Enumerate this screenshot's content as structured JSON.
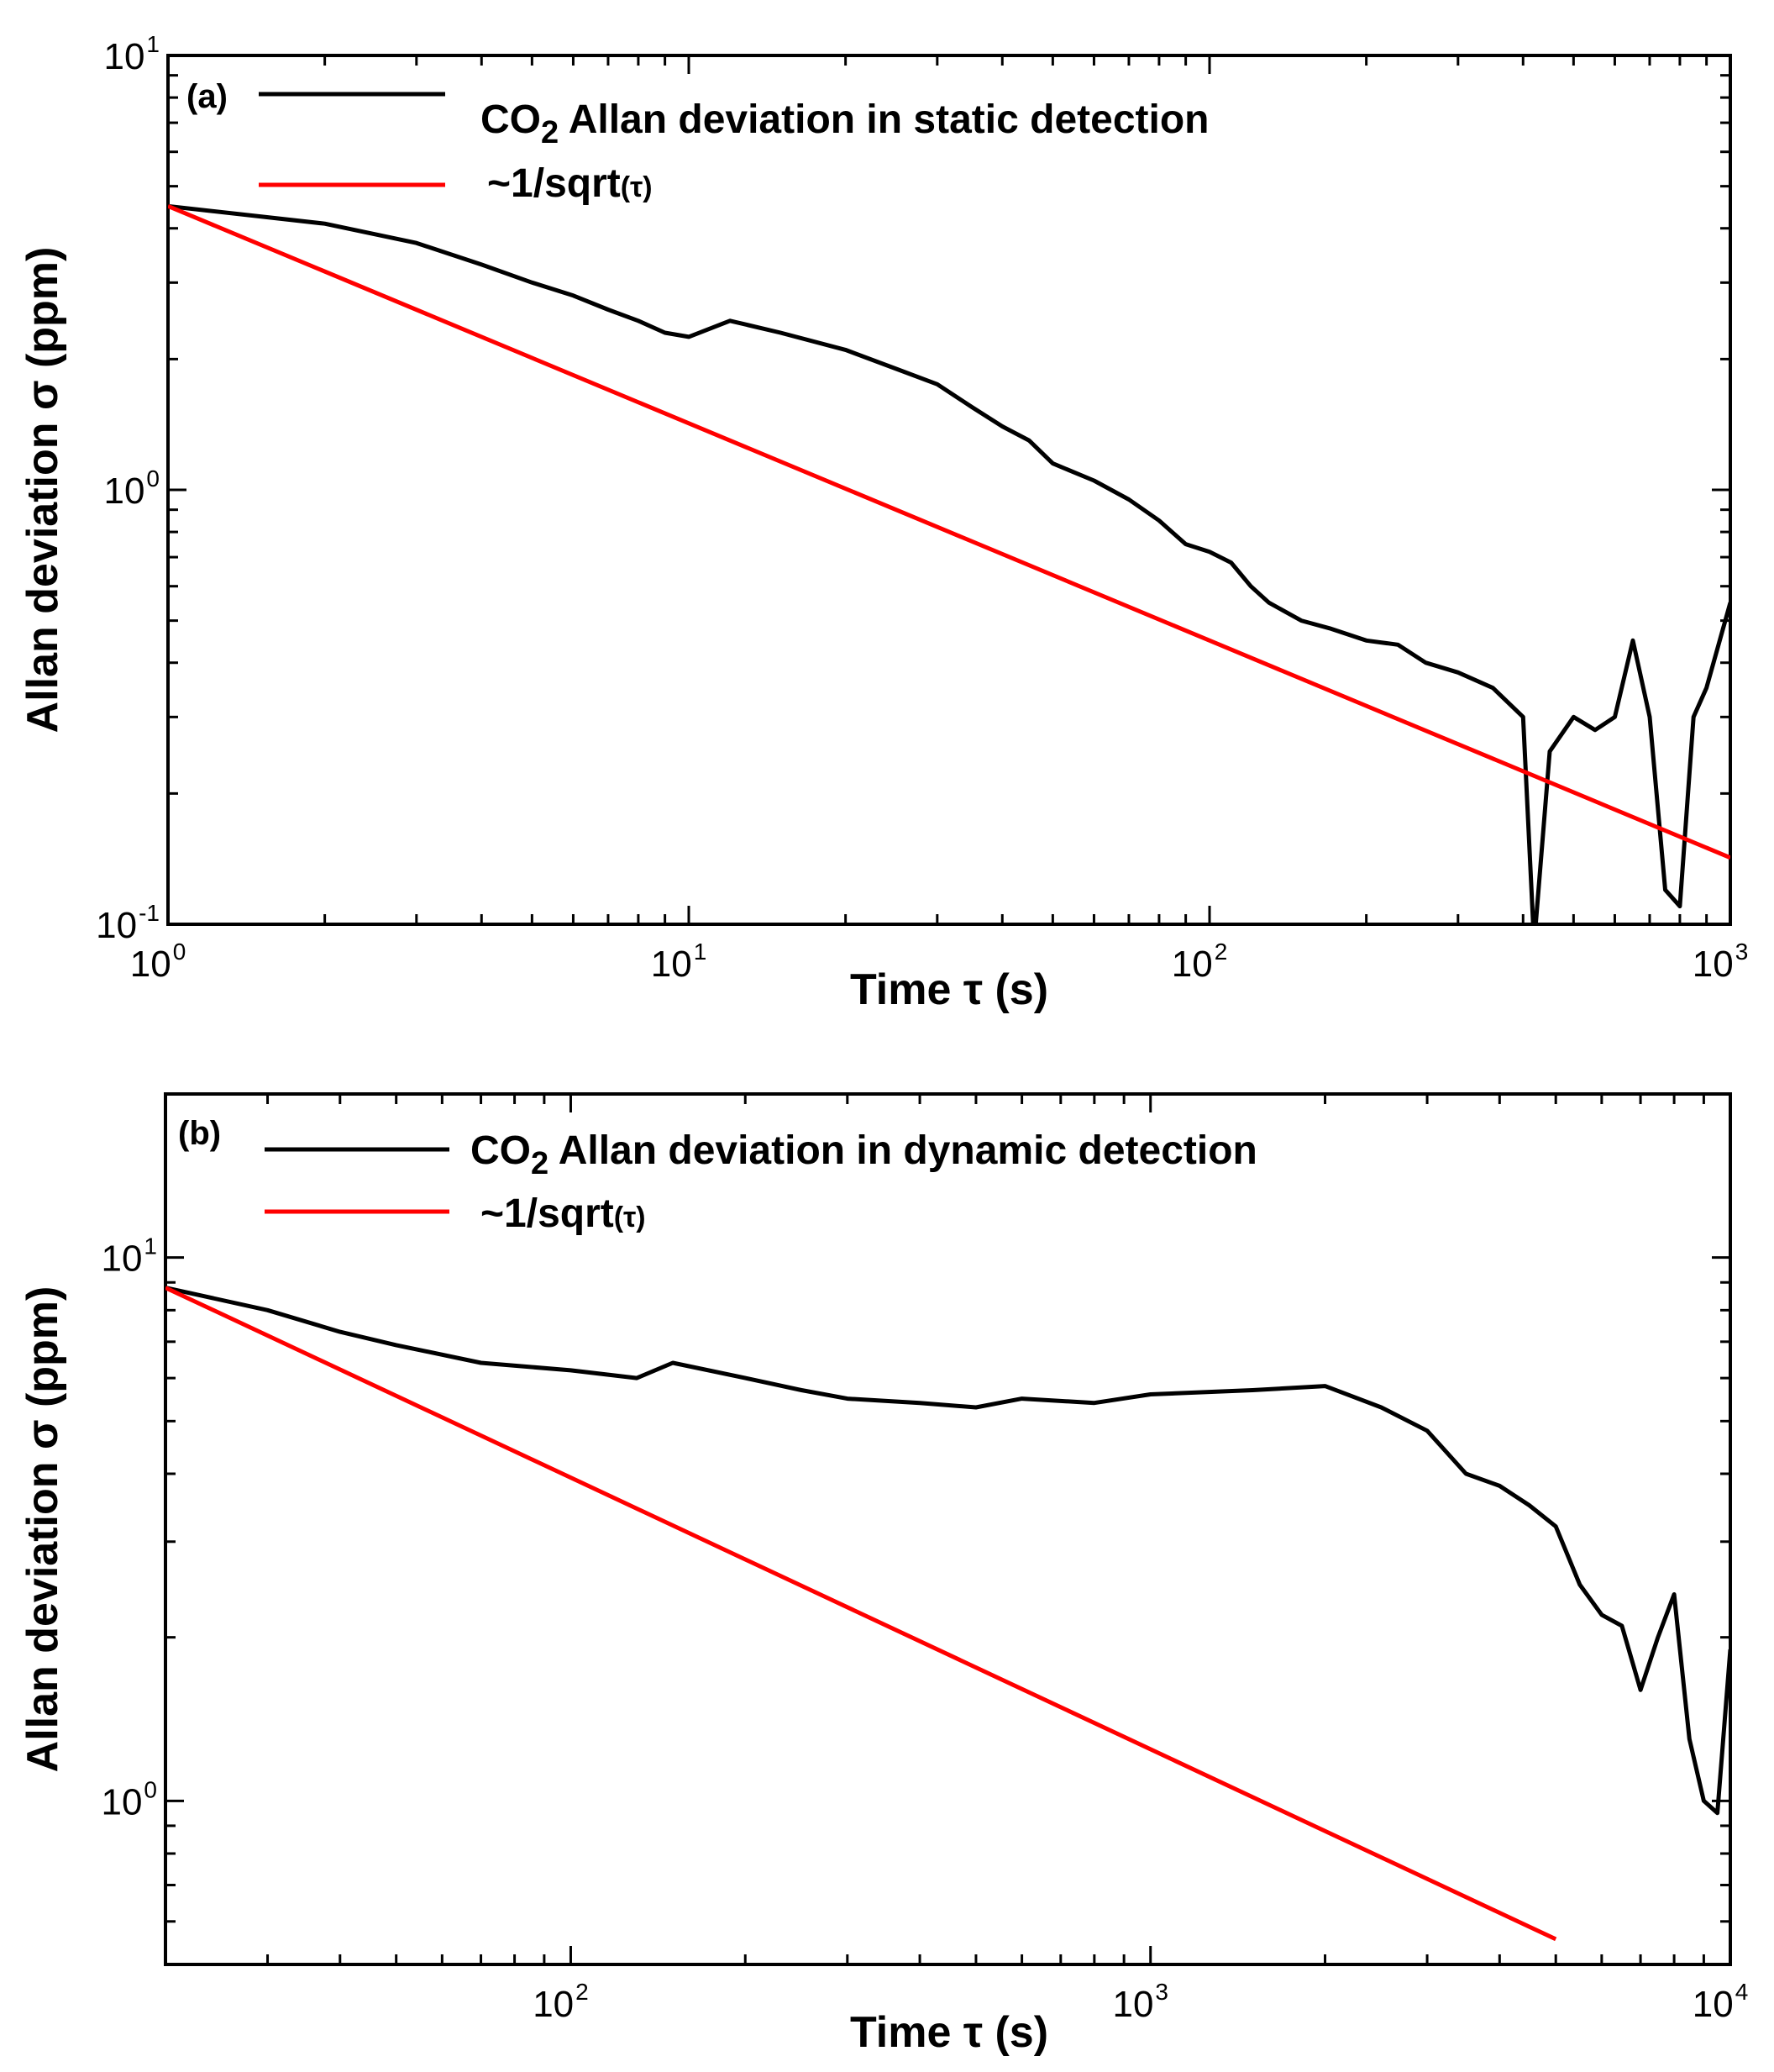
{
  "chart_data": [
    {
      "type": "line",
      "panel_label": "(a)",
      "xlabel": "Time τ (s)",
      "ylabel": "Allan deviation σ (ppm)",
      "x_scale": "log",
      "y_scale": "log",
      "xlim": [
        1,
        1000
      ],
      "ylim": [
        0.1,
        10
      ],
      "grid": false,
      "legend_position": "top-left",
      "x_ticks": [
        {
          "base": "10",
          "exp": "0",
          "value": 1
        },
        {
          "base": "10",
          "exp": "1",
          "value": 10
        },
        {
          "base": "10",
          "exp": "2",
          "value": 100
        },
        {
          "base": "10",
          "exp": "3",
          "value": 1000
        }
      ],
      "y_ticks": [
        {
          "base": "10",
          "exp": "-1",
          "value": 0.1
        },
        {
          "base": "10",
          "exp": "0",
          "value": 1
        },
        {
          "base": "10",
          "exp": "1",
          "value": 10
        }
      ],
      "series": [
        {
          "name": "CO2 Allan deviation in static detection",
          "legend_main": "CO",
          "legend_sub": "2",
          "legend_rest": " Allan deviation in static detection",
          "color": "#000000",
          "x": [
            1,
            2,
            3,
            4,
            5,
            6,
            7,
            8,
            9,
            10,
            12,
            15,
            20,
            25,
            30,
            35,
            40,
            45,
            50,
            60,
            70,
            80,
            90,
            100,
            110,
            120,
            130,
            150,
            170,
            200,
            230,
            260,
            300,
            350,
            400,
            420,
            450,
            500,
            550,
            600,
            650,
            700,
            750,
            800,
            850,
            900,
            1000
          ],
          "y": [
            4.5,
            4.1,
            3.7,
            3.3,
            3.0,
            2.8,
            2.6,
            2.45,
            2.3,
            2.25,
            2.45,
            2.3,
            2.1,
            1.9,
            1.75,
            1.55,
            1.4,
            1.3,
            1.15,
            1.05,
            0.95,
            0.85,
            0.75,
            0.72,
            0.68,
            0.6,
            0.55,
            0.5,
            0.48,
            0.45,
            0.44,
            0.4,
            0.38,
            0.35,
            0.3,
            0.09,
            0.25,
            0.3,
            0.28,
            0.3,
            0.45,
            0.3,
            0.12,
            0.11,
            0.3,
            0.35,
            0.55
          ]
        },
        {
          "name": "~1/sqrt(τ)",
          "legend_main": "~1/sqrt",
          "legend_small": "(τ)",
          "color": "#ff0000",
          "x": [
            1,
            1000
          ],
          "y": [
            4.5,
            0.1423
          ]
        }
      ]
    },
    {
      "type": "line",
      "panel_label": "(b)",
      "xlabel": "Time τ (s)",
      "ylabel": "Allan deviation σ (ppm)",
      "x_scale": "log",
      "y_scale": "log",
      "xlim": [
        20,
        10000
      ],
      "ylim": [
        0.5,
        20
      ],
      "grid": false,
      "legend_position": "top-left",
      "x_ticks": [
        {
          "base": "10",
          "exp": "2",
          "value": 100
        },
        {
          "base": "10",
          "exp": "3",
          "value": 1000
        },
        {
          "base": "10",
          "exp": "4",
          "value": 10000
        }
      ],
      "y_ticks": [
        {
          "base": "10",
          "exp": "0",
          "value": 1
        },
        {
          "base": "10",
          "exp": "1",
          "value": 10
        }
      ],
      "series": [
        {
          "name": "CO2 Allan deviation in dynamic detection",
          "legend_main": "CO",
          "legend_sub": "2",
          "legend_rest": " Allan deviation in dynamic detection",
          "color": "#000000",
          "x": [
            20,
            30,
            40,
            50,
            70,
            100,
            130,
            150,
            200,
            250,
            300,
            400,
            500,
            600,
            800,
            1000,
            1500,
            2000,
            2500,
            3000,
            3500,
            4000,
            4500,
            5000,
            5500,
            6000,
            6500,
            7000,
            7500,
            8000,
            8500,
            9000,
            9500,
            10000
          ],
          "y": [
            8.8,
            8.0,
            7.3,
            6.9,
            6.4,
            6.2,
            6.0,
            6.4,
            6.0,
            5.7,
            5.5,
            5.4,
            5.3,
            5.5,
            5.4,
            5.6,
            5.7,
            5.8,
            5.3,
            4.8,
            4.0,
            3.8,
            3.5,
            3.2,
            2.5,
            2.2,
            2.1,
            1.6,
            2.0,
            2.4,
            1.3,
            1.0,
            0.95,
            1.9
          ]
        },
        {
          "name": "~1/sqrt(τ)",
          "legend_main": "~1/sqrt",
          "legend_small": "(τ)",
          "color": "#ff0000",
          "x": [
            20,
            5000
          ],
          "y": [
            8.8,
            0.5565
          ]
        }
      ]
    }
  ]
}
